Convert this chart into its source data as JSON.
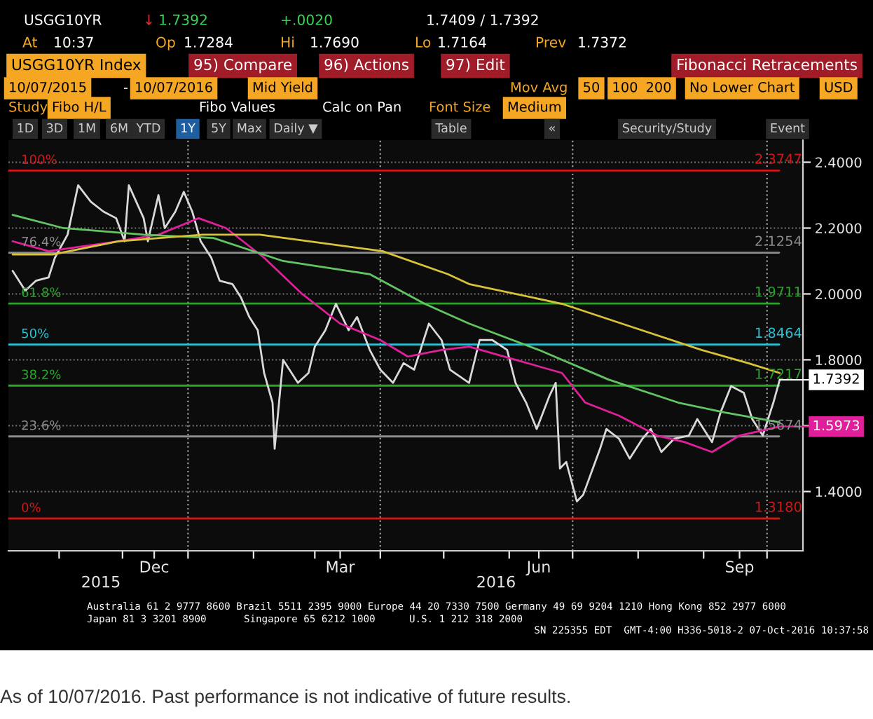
{
  "chart_data": {
    "type": "line",
    "xlim": [
      "2015-10-08",
      "2016-10-18"
    ],
    "ylim": [
      1.22,
      2.467
    ],
    "xticks": [
      {
        "value": "2015-11-01",
        "label": null
      },
      {
        "value": "2015-12-01",
        "label": null
      },
      {
        "value": "2015-12-16",
        "label": "Dec"
      },
      {
        "value": "2016-01-01",
        "label": null
      },
      {
        "value": "2016-02-01",
        "label": null
      },
      {
        "value": "2016-03-01",
        "label": null
      },
      {
        "value": "2016-03-13",
        "label": "Mar"
      },
      {
        "value": "2016-04-01",
        "label": null
      },
      {
        "value": "2016-05-01",
        "label": null
      },
      {
        "value": "2016-06-01",
        "label": null
      },
      {
        "value": "2016-06-15",
        "label": "Jun"
      },
      {
        "value": "2016-07-01",
        "label": null
      },
      {
        "value": "2016-08-01",
        "label": null
      },
      {
        "value": "2016-09-01",
        "label": null
      },
      {
        "value": "2016-09-18",
        "label": "Sep"
      },
      {
        "value": "2016-10-01",
        "label": null
      }
    ],
    "yticks": [
      {
        "value": 1.4,
        "label": "1.4000"
      },
      {
        "value": 1.6,
        "label": null
      },
      {
        "value": 1.8,
        "label": "1.8000"
      },
      {
        "value": 2.0,
        "label": "2.0000"
      },
      {
        "value": 2.2,
        "label": "2.2000"
      },
      {
        "value": 2.4,
        "label": "2.4000"
      }
    ],
    "grid": "y",
    "series": [
      {
        "color": "#d9d9d9",
        "x": [
          "2015-10-10",
          "2015-10-16",
          "2015-10-21",
          "2015-10-27",
          "2015-10-30",
          "2015-11-05",
          "2015-11-10",
          "2015-11-16",
          "2015-11-22",
          "2015-11-28",
          "2015-12-02",
          "2015-12-04",
          "2015-12-11",
          "2015-12-13",
          "2015-12-18",
          "2015-12-21",
          "2015-12-26",
          "2015-12-30",
          "2016-01-03",
          "2016-01-07",
          "2016-01-12",
          "2016-01-16",
          "2016-01-22",
          "2016-01-26",
          "2016-01-30",
          "2016-02-03",
          "2016-02-06",
          "2016-02-10",
          "2016-02-11",
          "2016-02-15",
          "2016-02-22",
          "2016-02-27",
          "2016-03-01",
          "2016-03-06",
          "2016-03-11",
          "2016-03-17",
          "2016-03-21",
          "2016-03-27",
          "2016-04-01",
          "2016-04-07",
          "2016-04-12",
          "2016-04-17",
          "2016-04-24",
          "2016-04-30",
          "2016-05-04",
          "2016-05-13",
          "2016-05-18",
          "2016-05-24",
          "2016-05-31",
          "2016-06-04",
          "2016-06-09",
          "2016-06-14",
          "2016-06-20",
          "2016-06-23",
          "2016-06-25",
          "2016-06-28",
          "2016-07-03",
          "2016-07-06",
          "2016-07-10",
          "2016-07-14",
          "2016-07-17",
          "2016-07-23",
          "2016-07-28",
          "2016-08-03",
          "2016-08-07",
          "2016-08-12",
          "2016-08-18",
          "2016-08-25",
          "2016-08-29",
          "2016-09-05",
          "2016-09-09",
          "2016-09-14",
          "2016-09-20",
          "2016-09-24",
          "2016-09-29",
          "2016-10-04",
          "2016-10-07"
        ],
        "values": [
          2.07,
          2.01,
          2.04,
          2.05,
          2.11,
          2.18,
          2.33,
          2.28,
          2.25,
          2.23,
          2.16,
          2.33,
          2.23,
          2.16,
          2.3,
          2.2,
          2.25,
          2.31,
          2.25,
          2.16,
          2.11,
          2.04,
          2.03,
          1.99,
          1.93,
          1.89,
          1.76,
          1.67,
          1.53,
          1.8,
          1.73,
          1.76,
          1.84,
          1.89,
          1.97,
          1.89,
          1.93,
          1.83,
          1.77,
          1.73,
          1.79,
          1.77,
          1.91,
          1.86,
          1.77,
          1.73,
          1.86,
          1.86,
          1.83,
          1.73,
          1.67,
          1.59,
          1.69,
          1.73,
          1.47,
          1.49,
          1.37,
          1.39,
          1.46,
          1.53,
          1.59,
          1.56,
          1.5,
          1.56,
          1.59,
          1.52,
          1.56,
          1.57,
          1.62,
          1.55,
          1.64,
          1.72,
          1.7,
          1.62,
          1.57,
          1.67,
          1.7392
        ]
      },
      {
        "color": "#e0209a",
        "x": [
          "2015-10-10",
          "2015-10-27",
          "2015-11-29",
          "2015-12-18",
          "2016-01-06",
          "2016-01-19",
          "2016-02-06",
          "2016-02-24",
          "2016-03-13",
          "2016-04-01",
          "2016-04-14",
          "2016-04-30",
          "2016-05-13",
          "2016-06-04",
          "2016-06-26",
          "2016-07-07",
          "2016-07-23",
          "2016-08-10",
          "2016-08-23",
          "2016-09-05",
          "2016-09-18",
          "2016-10-07"
        ],
        "values": [
          2.16,
          2.13,
          2.16,
          2.18,
          2.23,
          2.2,
          2.11,
          2.0,
          1.91,
          1.86,
          1.81,
          1.83,
          1.84,
          1.8,
          1.76,
          1.67,
          1.63,
          1.57,
          1.55,
          1.52,
          1.57,
          1.5973
        ]
      },
      {
        "color": "#62c462",
        "x": [
          "2015-10-10",
          "2015-11-03",
          "2015-12-11",
          "2016-01-13",
          "2016-02-15",
          "2016-03-27",
          "2016-04-22",
          "2016-05-13",
          "2016-06-15",
          "2016-07-18",
          "2016-08-20",
          "2016-09-11",
          "2016-10-07"
        ],
        "values": [
          2.24,
          2.2,
          2.18,
          2.17,
          2.1,
          2.06,
          1.97,
          1.91,
          1.83,
          1.74,
          1.67,
          1.64,
          1.61
        ]
      },
      {
        "color": "#d8c23a",
        "x": [
          "2015-10-10",
          "2015-10-29",
          "2015-11-29",
          "2016-01-08",
          "2016-02-04",
          "2016-04-02",
          "2016-05-03",
          "2016-05-13",
          "2016-06-26",
          "2016-07-29",
          "2016-08-31",
          "2016-09-22",
          "2016-10-07"
        ],
        "values": [
          2.12,
          2.12,
          2.16,
          2.18,
          2.18,
          2.13,
          2.06,
          2.03,
          1.97,
          1.9,
          1.83,
          1.79,
          1.76
        ]
      }
    ],
    "ref_lines": [
      {
        "axis": "y",
        "value": 2.3747,
        "label": "2.3747",
        "color": "#d01818"
      },
      {
        "axis": "y",
        "value": 2.1254,
        "label": "2.1254",
        "color": "#8c8c8c"
      },
      {
        "axis": "y",
        "value": 1.9711,
        "label": "1.9711",
        "color": "#2aa52a"
      },
      {
        "axis": "y",
        "value": 1.8464,
        "label": "1.8464",
        "color": "#29c1d4"
      },
      {
        "axis": "y",
        "value": 1.7217,
        "label": "1.7217",
        "color": "#2aa52a"
      },
      {
        "axis": "y",
        "value": 1.5674,
        "label": "1.5674",
        "color": "#8c8c8c"
      },
      {
        "axis": "y",
        "value": 1.318,
        "label": "1.3180",
        "color": "#d01818"
      },
      {
        "axis": "x",
        "value": "2016-01-01",
        "color": "#9a9a9a",
        "line_style": "dotted"
      },
      {
        "axis": "x",
        "value": "2016-04-01",
        "color": "#9a9a9a",
        "line_style": "dotted"
      },
      {
        "axis": "x",
        "value": "2016-07-01",
        "color": "#9a9a9a",
        "line_style": "dotted"
      },
      {
        "axis": "x",
        "value": "2016-10-01",
        "color": "#9a9a9a",
        "line_style": "dotted"
      }
    ],
    "annotations": [
      {
        "text": "100%",
        "x": "2015-10-14",
        "y": 2.3747
      },
      {
        "text": "76.4%",
        "x": "2015-10-14",
        "y": 2.1254
      },
      {
        "text": "61.8%",
        "x": "2015-10-14",
        "y": 1.9711
      },
      {
        "text": "50%",
        "x": "2015-10-14",
        "y": 1.8464
      },
      {
        "text": "38.2%",
        "x": "2015-10-14",
        "y": 1.7217
      },
      {
        "text": "23.6%",
        "x": "2015-10-14",
        "y": 1.5674
      },
      {
        "text": "0%",
        "x": "2015-10-14",
        "y": 1.318
      },
      {
        "text": "1.7392",
        "x": "2016-10-07",
        "y": 1.7392
      },
      {
        "text": "1.5973",
        "x": "2016-10-07",
        "y": 1.5973
      },
      "USGG10YR",
      "↓",
      "1.7392",
      "+.0020",
      "1.7409 / 1.7392",
      "At",
      "10:37",
      "Op",
      "1.7284",
      "Hi",
      "1.7690",
      "Lo",
      "1.7164",
      "Prev",
      "1.7372",
      "USGG10YR Index",
      "95) Compare",
      "96) Actions",
      "97) Edit",
      "Fibonacci Retracements",
      "10/07/2015",
      "-",
      "10/07/2016",
      "Mid Yield",
      "Mov Avg",
      "50",
      "100",
      "200",
      "No Lower Chart",
      "USD",
      "Study",
      "Fibo H/L",
      "Fibo Values",
      "Calc on Pan",
      "Font Size",
      "Medium",
      "1D",
      "3D",
      "1M",
      "6M",
      "YTD",
      "1Y",
      "5Y",
      "Max",
      "Daily ▼",
      "Table",
      "«",
      "Security/Study",
      "Event",
      "Australia 61 2 9777 8600 Brazil 5511 2395 9000 Europe 44 20 7330 7500 Germany 49 69 9204 1210 Hong Kong 852 2977 6000",
      "Japan 81 3 3201 8900",
      "Singapore 65 6212 1000",
      "U.S. 1 212 318 2000",
      "SN 225355 EDT  GMT-4:00 H336-5018-2 07-Oct-2016 10:37:58",
      "As of 10/07/2016. Past performance is not indicative of future results.",
      "2015",
      "2016"
    ]
  }
}
